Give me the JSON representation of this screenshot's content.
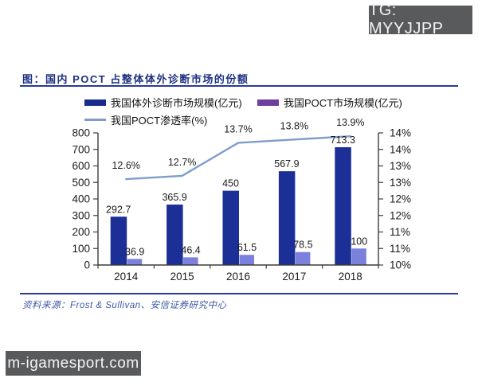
{
  "watermark_top": {
    "label": "TG: MYYJJPP"
  },
  "watermark_bottom": {
    "label": "m-igamesport.com"
  },
  "figure": {
    "title": "图：国内 POCT 占整体体外诊断市场的份额",
    "source": "资料来源：Frost & Sullivan、安信证券研究中心",
    "legend": [
      {
        "label": "我国体外诊断市场规模(亿元)",
        "swatch": "bar",
        "color": "#1a2b8e"
      },
      {
        "label": "我国POCT市场规模(亿元)",
        "swatch": "bar",
        "color": "#6f3f9e"
      },
      {
        "label": "我国POCT渗透率(%)",
        "swatch": "line",
        "color": "#7e9dcb"
      }
    ],
    "colors": {
      "title_navy": "#1e3282",
      "rule_navy": "#2a3a96",
      "source_blue": "#3d59a6",
      "watermark_gray": "#595a5c"
    }
  },
  "chart_data": {
    "type": "bar",
    "subtype": "grouped bars with secondary-axis line",
    "title": "国内 POCT 占整体体外诊断市场的份额",
    "categories": [
      "2014",
      "2015",
      "2016",
      "2017",
      "2018"
    ],
    "series": [
      {
        "name": "我国体外诊断市场规模(亿元)",
        "type": "bar",
        "axis": "left",
        "color": "#1b2f96",
        "values": [
          292.7,
          365.9,
          450,
          567.9,
          713.3
        ],
        "labels": [
          "292.7",
          "365.9",
          "450",
          "567.9",
          "713.3"
        ]
      },
      {
        "name": "我国POCT市场规模(亿元)",
        "type": "bar",
        "axis": "left",
        "color": "#7b80dc",
        "values": [
          36.9,
          46.4,
          61.5,
          78.5,
          100
        ],
        "labels": [
          "36.9",
          "46.4",
          "61.5",
          "78.5",
          "100"
        ]
      },
      {
        "name": "我国POCT渗透率(%)",
        "type": "line",
        "axis": "right",
        "color": "#7e9dcb",
        "values": [
          12.6,
          12.7,
          13.7,
          13.8,
          13.9
        ],
        "labels": [
          "12.6%",
          "12.7%",
          "13.7%",
          "13.8%",
          "13.9%"
        ]
      }
    ],
    "left_axis": {
      "min": 0,
      "max": 800,
      "step": 100,
      "tick_labels": [
        "0",
        "100",
        "200",
        "300",
        "400",
        "500",
        "600",
        "700",
        "800"
      ]
    },
    "right_axis": {
      "min": 10,
      "max": 14,
      "step": 0.5,
      "tick_labels": [
        "10%",
        "11%",
        "11%",
        "12%",
        "12%",
        "13%",
        "13%",
        "14%",
        "14%"
      ]
    },
    "grid": false,
    "legend_position": "top"
  }
}
